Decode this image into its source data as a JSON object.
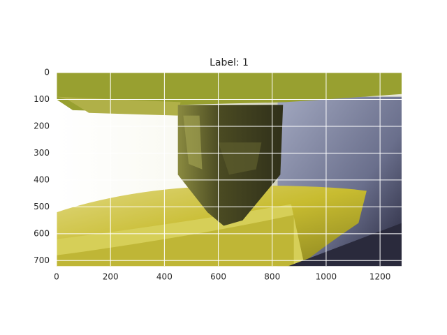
{
  "chart_data": {
    "type": "image",
    "title": "Label: 1",
    "xlim": [
      0,
      1280
    ],
    "xticks": [
      0,
      200,
      400,
      600,
      800,
      1000,
      1200
    ],
    "ylim": [
      720,
      0
    ],
    "yticks": [
      0,
      100,
      200,
      300,
      400,
      500,
      600,
      700
    ],
    "grid": true,
    "grid_color": "#ffffff"
  }
}
